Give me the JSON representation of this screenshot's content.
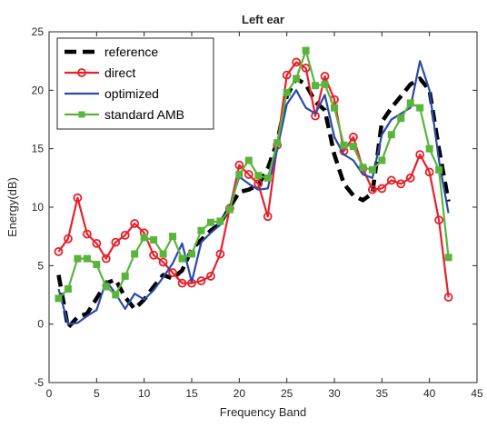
{
  "chart_data": {
    "type": "line",
    "title": "Left ear",
    "xlabel": "Frequency Band",
    "ylabel": "Energy(dB)",
    "xlim": [
      0,
      45
    ],
    "ylim": [
      -5,
      25
    ],
    "xticks": [
      0,
      5,
      10,
      15,
      20,
      25,
      30,
      35,
      40,
      45
    ],
    "yticks": [
      -5,
      0,
      5,
      10,
      15,
      20,
      25
    ],
    "grid": false,
    "legend_position": "top-left",
    "series": [
      {
        "name": "reference",
        "color": "#000000",
        "style": "dashed",
        "marker": "none",
        "x": [
          1,
          2,
          3,
          4,
          5,
          6,
          7,
          8,
          9,
          10,
          11,
          12,
          13,
          14,
          15,
          16,
          17,
          18,
          19,
          20,
          21,
          22,
          23,
          24,
          25,
          26,
          27,
          28,
          29,
          30,
          31,
          32,
          33,
          34,
          35,
          36,
          37,
          38,
          39,
          40,
          41,
          42
        ],
        "values": [
          4.2,
          -0.3,
          0.6,
          0.9,
          2.2,
          3.5,
          3.8,
          2.3,
          1.3,
          2.1,
          3.2,
          4.2,
          3.9,
          4.6,
          6.4,
          7.2,
          8.0,
          8.6,
          10.0,
          11.3,
          11.5,
          11.9,
          13.3,
          15.6,
          19.5,
          21.0,
          20.5,
          19.0,
          18.3,
          14.5,
          12.0,
          11.0,
          10.6,
          11.2,
          17.3,
          18.5,
          19.5,
          20.5,
          21.0,
          20.0,
          15.0,
          10.5
        ]
      },
      {
        "name": "direct",
        "color": "#e8202a",
        "style": "solid",
        "marker": "circle",
        "x": [
          1,
          2,
          3,
          4,
          5,
          6,
          7,
          8,
          9,
          10,
          11,
          12,
          13,
          14,
          15,
          16,
          17,
          18,
          19,
          20,
          21,
          22,
          23,
          24,
          25,
          26,
          27,
          28,
          29,
          30,
          31,
          32,
          33,
          34,
          35,
          36,
          37,
          38,
          39,
          40,
          41,
          42
        ],
        "values": [
          6.2,
          7.3,
          10.8,
          7.7,
          6.9,
          5.6,
          7.0,
          7.6,
          8.6,
          7.8,
          5.9,
          5.3,
          4.4,
          3.5,
          3.5,
          3.7,
          4.1,
          6.0,
          9.9,
          13.6,
          12.8,
          12.0,
          9.2,
          15.3,
          21.3,
          22.4,
          21.9,
          17.8,
          21.2,
          19.2,
          14.8,
          16.0,
          13.3,
          11.5,
          11.6,
          12.3,
          12.0,
          12.5,
          14.5,
          13.0,
          8.9,
          2.3
        ]
      },
      {
        "name": "optimized",
        "color": "#2b4aa8",
        "style": "solid",
        "marker": "none",
        "x": [
          1,
          2,
          3,
          4,
          5,
          6,
          7,
          8,
          9,
          10,
          11,
          12,
          13,
          14,
          15,
          16,
          17,
          18,
          19,
          20,
          21,
          22,
          23,
          24,
          25,
          26,
          27,
          28,
          29,
          30,
          31,
          32,
          33,
          34,
          35,
          36,
          37,
          38,
          39,
          40,
          41,
          42
        ],
        "values": [
          3.0,
          0.0,
          0.1,
          0.7,
          1.2,
          3.7,
          2.6,
          1.3,
          2.6,
          2.1,
          2.9,
          4.0,
          5.2,
          6.9,
          3.6,
          7.0,
          7.8,
          8.5,
          10.0,
          12.6,
          12.0,
          11.5,
          11.6,
          15.0,
          18.8,
          20.0,
          18.5,
          18.0,
          19.6,
          16.0,
          14.5,
          14.0,
          12.8,
          12.5,
          16.2,
          17.5,
          18.0,
          18.5,
          22.5,
          20.0,
          14.0,
          9.5
        ]
      },
      {
        "name": "standard AMB",
        "color": "#5ab43c",
        "style": "solid",
        "marker": "square",
        "x": [
          1,
          2,
          3,
          4,
          5,
          6,
          7,
          8,
          9,
          10,
          11,
          12,
          13,
          14,
          15,
          16,
          17,
          18,
          19,
          20,
          21,
          22,
          23,
          24,
          25,
          26,
          27,
          28,
          29,
          30,
          31,
          32,
          33,
          34,
          35,
          36,
          37,
          38,
          39,
          40,
          41,
          42
        ],
        "values": [
          2.2,
          3.0,
          5.6,
          5.6,
          5.1,
          3.2,
          2.5,
          4.1,
          6.0,
          7.4,
          7.2,
          6.0,
          7.5,
          5.6,
          6.0,
          8.0,
          8.7,
          8.8,
          9.8,
          12.8,
          14.0,
          12.7,
          12.5,
          15.5,
          19.8,
          21.0,
          23.4,
          20.4,
          20.5,
          18.5,
          15.3,
          15.2,
          13.4,
          13.2,
          14.0,
          16.2,
          17.6,
          18.9,
          18.5,
          15.0,
          13.2,
          5.7
        ]
      }
    ]
  }
}
